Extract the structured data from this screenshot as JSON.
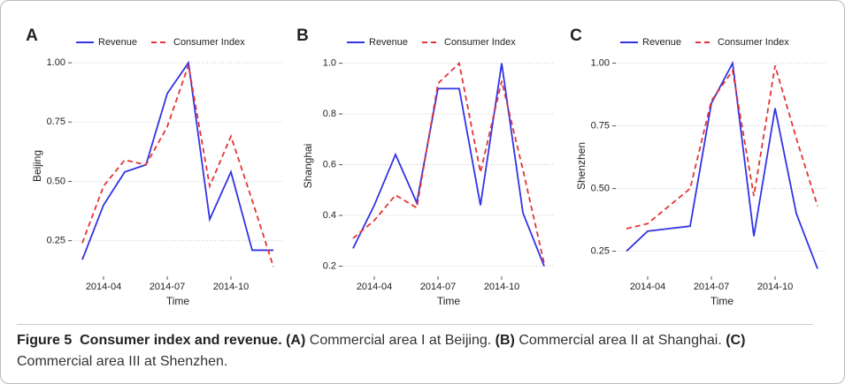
{
  "chart_data": [
    {
      "type": "line",
      "panel_label": "A",
      "ylabel": "Beijing",
      "xlabel": "Time",
      "x": [
        "2014-03",
        "2014-04",
        "2014-05",
        "2014-06",
        "2014-07",
        "2014-08",
        "2014-09",
        "2014-10",
        "2014-11",
        "2014-12"
      ],
      "xticks": [
        "2014-04",
        "2014-07",
        "2014-10"
      ],
      "ylim": [
        0.1,
        1.03
      ],
      "yticks": [
        0.25,
        {
          "value": 0.5,
          "label": "0.50"
        },
        0.75,
        {
          "value": 1,
          "label": "1.00"
        }
      ],
      "grid": true,
      "series": [
        {
          "name": "Revenue",
          "color": "#3333e6",
          "linestyle": "solid",
          "values": [
            0.17,
            0.4,
            0.54,
            0.57,
            0.87,
            1.0,
            0.34,
            0.54,
            0.21,
            0.21
          ]
        },
        {
          "name": "Consumer Index",
          "color": "#e63333",
          "linestyle": "dashed",
          "values": [
            0.24,
            0.48,
            0.59,
            0.57,
            0.73,
            0.99,
            0.48,
            0.69,
            0.42,
            0.14
          ]
        }
      ]
    },
    {
      "type": "line",
      "panel_label": "B",
      "ylabel": "Shanghai",
      "xlabel": "Time",
      "x": [
        "2014-03",
        "2014-04",
        "2014-05",
        "2014-06",
        "2014-07",
        "2014-08",
        "2014-09",
        "2014-10",
        "2014-11",
        "2014-12"
      ],
      "xticks": [
        "2014-04",
        "2014-07",
        "2014-10"
      ],
      "ylim": [
        0.16,
        1.03
      ],
      "yticks": [
        0.2,
        0.4,
        0.6,
        0.8,
        {
          "value": 1,
          "label": "1.0"
        }
      ],
      "grid": true,
      "series": [
        {
          "name": "Revenue",
          "color": "#3333e6",
          "linestyle": "solid",
          "values": [
            0.27,
            0.44,
            0.64,
            0.45,
            0.9,
            0.9,
            0.44,
            1.0,
            0.41,
            0.2
          ]
        },
        {
          "name": "Consumer Index",
          "color": "#e63333",
          "linestyle": "dashed",
          "values": [
            0.31,
            0.38,
            0.48,
            0.43,
            0.92,
            1.0,
            0.57,
            0.93,
            0.58,
            0.21
          ]
        }
      ]
    },
    {
      "type": "line",
      "panel_label": "C",
      "ylabel": "Shenzhen",
      "xlabel": "Time",
      "x": [
        "2014-03",
        "2014-04",
        "2014-05",
        "2014-06",
        "2014-07",
        "2014-08",
        "2014-09",
        "2014-10",
        "2014-11",
        "2014-12"
      ],
      "xticks": [
        "2014-04",
        "2014-07",
        "2014-10"
      ],
      "ylim": [
        0.15,
        1.03
      ],
      "yticks": [
        0.25,
        {
          "value": 0.5,
          "label": "0.50"
        },
        0.75,
        {
          "value": 1,
          "label": "1.00"
        }
      ],
      "grid": true,
      "series": [
        {
          "name": "Revenue",
          "color": "#3333e6",
          "linestyle": "solid",
          "values": [
            0.25,
            0.33,
            0.34,
            0.35,
            0.84,
            1.0,
            0.31,
            0.82,
            0.4,
            0.18
          ]
        },
        {
          "name": "Consumer Index",
          "color": "#e63333",
          "linestyle": "dashed",
          "values": [
            0.34,
            0.36,
            0.43,
            0.5,
            0.85,
            0.97,
            0.47,
            0.99,
            0.7,
            0.43
          ]
        }
      ]
    }
  ],
  "caption": {
    "label": "Figure 5",
    "title": "Consumer index and revenue.",
    "parts": [
      {
        "tag": "(A)",
        "text": "Commercial area I at Beijing."
      },
      {
        "tag": "(B)",
        "text": "Commercial area II at Shanghai."
      },
      {
        "tag": "(C)",
        "text": "Commercial area III at Shenzhen."
      }
    ]
  }
}
